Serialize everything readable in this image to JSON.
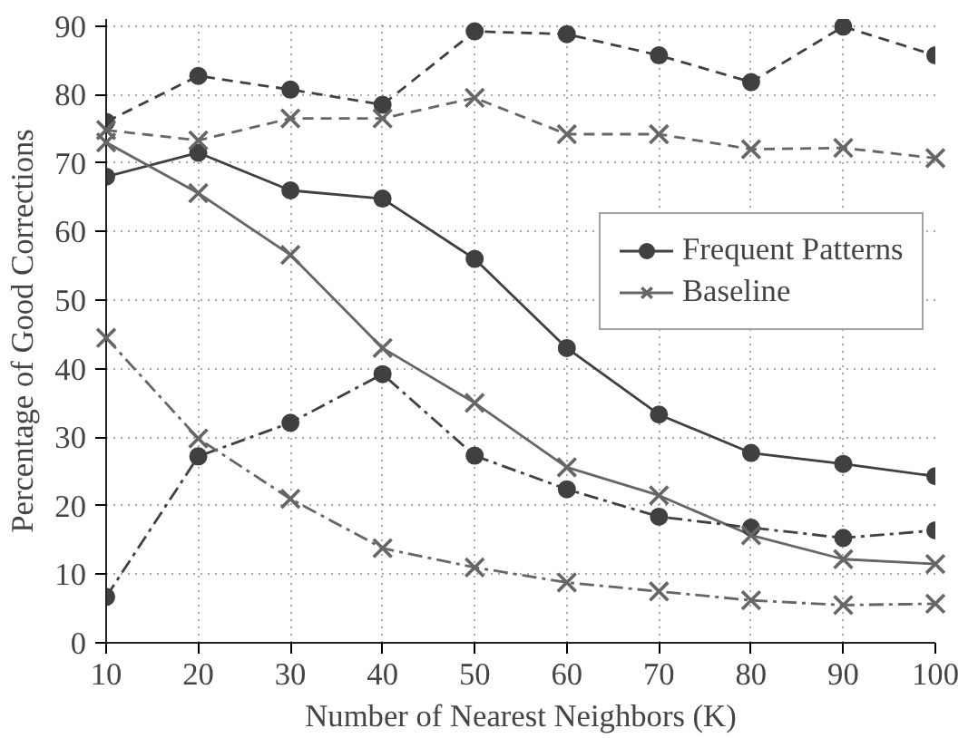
{
  "chart_data": {
    "type": "line",
    "xlabel": "Number of Nearest Neighbors (K)",
    "ylabel": "Percentage of Good Corrections",
    "x": [
      10,
      20,
      30,
      40,
      50,
      60,
      70,
      80,
      90,
      100
    ],
    "xlim": [
      10,
      100
    ],
    "xticks": [
      10,
      20,
      30,
      40,
      50,
      60,
      70,
      80,
      90,
      100
    ],
    "ylim": [
      0,
      91
    ],
    "yticks": [
      0,
      10,
      20,
      30,
      40,
      50,
      60,
      70,
      80,
      90
    ],
    "grid": true,
    "legend": "right",
    "series": [
      {
        "name": "Frequent Patterns",
        "color": "#404040",
        "marker": "circle",
        "line_style": "solid",
        "values": [
          68,
          71.5,
          66,
          64.8,
          56,
          43,
          33.3,
          27.7,
          26.1,
          24.3
        ]
      },
      {
        "name": "Baseline",
        "color": "#666666",
        "marker": "cross",
        "line_style": "solid",
        "values": [
          73,
          65.6,
          56.6,
          43,
          35,
          25.6,
          21.5,
          15.7,
          12.2,
          11.5
        ]
      },
      {
        "color": "#404040",
        "marker": "circle",
        "line_style": "dashed",
        "values": [
          76,
          82.7,
          80.7,
          78.5,
          89.2,
          88.8,
          85.7,
          81.8,
          89.9,
          85.7
        ]
      },
      {
        "color": "#666666",
        "marker": "cross",
        "line_style": "dashed",
        "values": [
          74.8,
          73.3,
          76.5,
          76.5,
          79.5,
          74.2,
          74.2,
          72,
          72.2,
          70.7
        ]
      },
      {
        "color": "#404040",
        "marker": "circle",
        "line_style": "dashdot",
        "values": [
          6.7,
          27.2,
          32.1,
          39.2,
          27.3,
          22.4,
          18.4,
          16.8,
          15.3,
          16.4
        ]
      },
      {
        "color": "#666666",
        "marker": "cross",
        "line_style": "dashdot",
        "values": [
          44.5,
          29.8,
          21,
          13.8,
          11,
          8.8,
          7.5,
          6.2,
          5.5,
          5.7
        ]
      }
    ]
  }
}
